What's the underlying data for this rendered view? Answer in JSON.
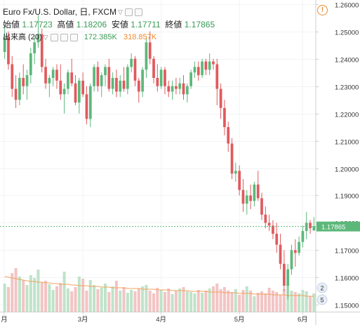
{
  "header": {
    "symbol": "Euro Fx/U.S. Dollar, 日, FXCM",
    "open_label": "始値",
    "open_value": "1.17723",
    "high_label": "高値",
    "high_value": "1.18206",
    "low_label": "安値",
    "low_value": "1.17711",
    "close_label": "終値",
    "close_value": "1.17865",
    "volume_label": "出来高 (20)",
    "volume_value": "172.385K",
    "volume_ma_value": "318.857K",
    "warning_icon": "exclamation-icon"
  },
  "colors": {
    "up": "#5cb87a",
    "down": "#e05a5e",
    "vol_up": "#bfe3c9",
    "vol_down": "#f3c4c4",
    "vol_ma": "#f2a35e",
    "last_price_tag": "#5cb87a"
  },
  "chart_data": {
    "type": "candlestick",
    "y_axis": {
      "ticks": [
        "1.26000",
        "1.25000",
        "1.24000",
        "1.23000",
        "1.22000",
        "1.21000",
        "1.20000",
        "1.19000",
        "1.18000",
        "1.17000",
        "1.16000",
        "1.15000"
      ],
      "range": [
        1.1475,
        1.2615
      ]
    },
    "x_axis": {
      "labels": [
        "月",
        "3月",
        "4月",
        "5月",
        "6月"
      ]
    },
    "last_price": "1.17865",
    "volume_axis_badges": [
      "2",
      "5"
    ],
    "ohlc": [
      [
        1.2425,
        1.252,
        1.24,
        1.248
      ],
      [
        1.248,
        1.25,
        1.236,
        1.238
      ],
      [
        1.238,
        1.241,
        1.226,
        1.229
      ],
      [
        1.229,
        1.234,
        1.222,
        1.225
      ],
      [
        1.225,
        1.235,
        1.223,
        1.233
      ],
      [
        1.233,
        1.238,
        1.227,
        1.23
      ],
      [
        1.23,
        1.236,
        1.225,
        1.234
      ],
      [
        1.234,
        1.244,
        1.231,
        1.242
      ],
      [
        1.242,
        1.248,
        1.238,
        1.246
      ],
      [
        1.246,
        1.256,
        1.244,
        1.249
      ],
      [
        1.249,
        1.251,
        1.235,
        1.237
      ],
      [
        1.237,
        1.24,
        1.229,
        1.231
      ],
      [
        1.231,
        1.234,
        1.226,
        1.233
      ],
      [
        1.233,
        1.237,
        1.23,
        1.236
      ],
      [
        1.236,
        1.238,
        1.229,
        1.232
      ],
      [
        1.232,
        1.238,
        1.225,
        1.227
      ],
      [
        1.227,
        1.231,
        1.22,
        1.229
      ],
      [
        1.229,
        1.236,
        1.227,
        1.235
      ],
      [
        1.235,
        1.24,
        1.23,
        1.231
      ],
      [
        1.231,
        1.234,
        1.223,
        1.224
      ],
      [
        1.224,
        1.233,
        1.22,
        1.232
      ],
      [
        1.232,
        1.235,
        1.226,
        1.227
      ],
      [
        1.227,
        1.23,
        1.216,
        1.218
      ],
      [
        1.218,
        1.231,
        1.215,
        1.23
      ],
      [
        1.23,
        1.238,
        1.228,
        1.237
      ],
      [
        1.237,
        1.239,
        1.228,
        1.23
      ],
      [
        1.23,
        1.235,
        1.226,
        1.234
      ],
      [
        1.234,
        1.238,
        1.23,
        1.237
      ],
      [
        1.237,
        1.24,
        1.228,
        1.229
      ],
      [
        1.229,
        1.235,
        1.227,
        1.233
      ],
      [
        1.233,
        1.236,
        1.226,
        1.228
      ],
      [
        1.228,
        1.234,
        1.226,
        1.232
      ],
      [
        1.232,
        1.237,
        1.228,
        1.229
      ],
      [
        1.229,
        1.238,
        1.227,
        1.237
      ],
      [
        1.237,
        1.242,
        1.235,
        1.24
      ],
      [
        1.24,
        1.241,
        1.23,
        1.232
      ],
      [
        1.232,
        1.233,
        1.224,
        1.228
      ],
      [
        1.228,
        1.237,
        1.226,
        1.236
      ],
      [
        1.236,
        1.248,
        1.233,
        1.246
      ],
      [
        1.246,
        1.25,
        1.238,
        1.24
      ],
      [
        1.24,
        1.241,
        1.231,
        1.233
      ],
      [
        1.233,
        1.238,
        1.228,
        1.23
      ],
      [
        1.23,
        1.237,
        1.229,
        1.236
      ],
      [
        1.236,
        1.237,
        1.227,
        1.23
      ],
      [
        1.23,
        1.232,
        1.226,
        1.228
      ],
      [
        1.228,
        1.232,
        1.225,
        1.23
      ],
      [
        1.23,
        1.233,
        1.227,
        1.229
      ],
      [
        1.229,
        1.233,
        1.227,
        1.231
      ],
      [
        1.231,
        1.234,
        1.225,
        1.227
      ],
      [
        1.227,
        1.231,
        1.224,
        1.23
      ],
      [
        1.23,
        1.236,
        1.229,
        1.235
      ],
      [
        1.235,
        1.239,
        1.233,
        1.237
      ],
      [
        1.237,
        1.239,
        1.232,
        1.234
      ],
      [
        1.234,
        1.24,
        1.233,
        1.239
      ],
      [
        1.239,
        1.24,
        1.234,
        1.236
      ],
      [
        1.236,
        1.242,
        1.234,
        1.239
      ],
      [
        1.239,
        1.24,
        1.236,
        1.238
      ],
      [
        1.238,
        1.24,
        1.223,
        1.229
      ],
      [
        1.229,
        1.231,
        1.218,
        1.222
      ],
      [
        1.222,
        1.225,
        1.212,
        1.215
      ],
      [
        1.215,
        1.217,
        1.206,
        1.209
      ],
      [
        1.209,
        1.211,
        1.196,
        1.198
      ],
      [
        1.198,
        1.202,
        1.195,
        1.199
      ],
      [
        1.199,
        1.201,
        1.19,
        1.192
      ],
      [
        1.192,
        1.196,
        1.184,
        1.187
      ],
      [
        1.187,
        1.192,
        1.183,
        1.19
      ],
      [
        1.19,
        1.194,
        1.185,
        1.188
      ],
      [
        1.188,
        1.195,
        1.186,
        1.194
      ],
      [
        1.194,
        1.199,
        1.188,
        1.189
      ],
      [
        1.189,
        1.191,
        1.181,
        1.183
      ],
      [
        1.183,
        1.186,
        1.178,
        1.18
      ],
      [
        1.18,
        1.183,
        1.177,
        1.179
      ],
      [
        1.179,
        1.181,
        1.174,
        1.176
      ],
      [
        1.176,
        1.18,
        1.169,
        1.172
      ],
      [
        1.172,
        1.176,
        1.163,
        1.165
      ],
      [
        1.165,
        1.17,
        1.155,
        1.157
      ],
      [
        1.157,
        1.165,
        1.152,
        1.163
      ],
      [
        1.163,
        1.172,
        1.161,
        1.17
      ],
      [
        1.17,
        1.174,
        1.164,
        1.169
      ],
      [
        1.169,
        1.175,
        1.168,
        1.173
      ],
      [
        1.173,
        1.179,
        1.171,
        1.177
      ],
      [
        1.177,
        1.184,
        1.174,
        1.18
      ],
      [
        1.18,
        1.181,
        1.176,
        1.178
      ],
      [
        1.1772,
        1.1821,
        1.1771,
        1.1787
      ]
    ],
    "volume_ma": [
      0.5,
      0.49,
      0.48,
      0.47,
      0.46,
      0.45,
      0.44,
      0.43,
      0.43,
      0.42,
      0.42,
      0.41,
      0.41,
      0.4,
      0.4,
      0.39,
      0.39,
      0.39,
      0.38,
      0.38,
      0.37,
      0.37,
      0.37,
      0.36,
      0.36,
      0.36,
      0.35,
      0.35,
      0.35,
      0.34,
      0.34,
      0.34,
      0.34,
      0.33,
      0.33,
      0.33,
      0.33,
      0.32,
      0.32,
      0.32,
      0.32,
      0.31,
      0.31,
      0.31,
      0.31,
      0.3,
      0.3,
      0.3,
      0.3,
      0.3,
      0.29,
      0.29,
      0.29,
      0.29,
      0.29,
      0.28,
      0.28,
      0.28,
      0.28,
      0.27,
      0.27,
      0.27,
      0.27,
      0.26,
      0.26,
      0.26,
      0.26,
      0.25,
      0.25,
      0.25,
      0.25,
      0.25,
      0.24,
      0.24,
      0.24,
      0.24,
      0.23,
      0.23,
      0.23,
      0.23,
      0.23,
      0.22,
      0.22,
      0.22
    ],
    "volume": [
      0.4,
      0.35,
      0.55,
      0.62,
      0.5,
      0.45,
      0.38,
      0.52,
      0.48,
      0.6,
      0.42,
      0.44,
      0.39,
      0.31,
      0.36,
      0.41,
      0.57,
      0.33,
      0.29,
      0.35,
      0.5,
      0.47,
      0.3,
      0.45,
      0.38,
      0.32,
      0.34,
      0.4,
      0.28,
      0.36,
      0.44,
      0.3,
      0.35,
      0.27,
      0.31,
      0.29,
      0.33,
      0.36,
      0.38,
      0.3,
      0.26,
      0.34,
      0.31,
      0.28,
      0.33,
      0.25,
      0.3,
      0.33,
      0.35,
      0.29,
      0.28,
      0.26,
      0.31,
      0.27,
      0.3,
      0.33,
      0.36,
      0.4,
      0.32,
      0.35,
      0.3,
      0.28,
      0.32,
      0.24,
      0.31,
      0.36,
      0.3,
      0.22,
      0.27,
      0.29,
      0.26,
      0.34,
      0.3,
      0.28,
      0.24,
      0.32,
      0.4,
      0.3,
      0.28,
      0.26,
      0.31,
      0.29,
      0.22,
      0.26
    ]
  }
}
